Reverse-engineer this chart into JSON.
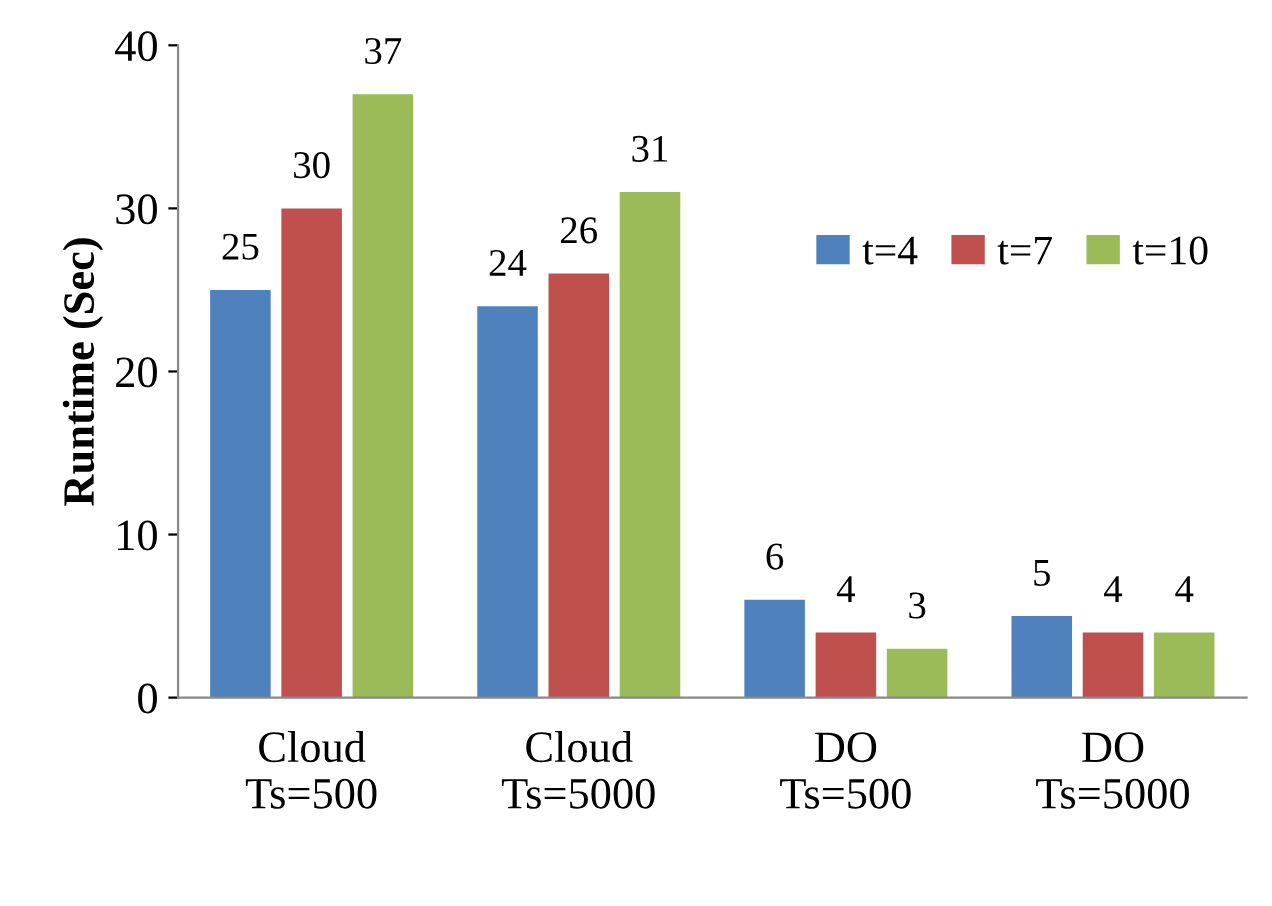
{
  "chart_data": {
    "type": "bar",
    "ylabel": "Runtime (Sec)",
    "categories": [
      "Cloud\nTs=500",
      "Cloud\nTs=5000",
      "DO\nTs=500",
      "DO\nTs=5000"
    ],
    "series": [
      {
        "name": "t=4",
        "color": "#4f81bd",
        "values": [
          25,
          24,
          6,
          5
        ]
      },
      {
        "name": "t=7",
        "color": "#c0504d",
        "values": [
          30,
          26,
          4,
          4
        ]
      },
      {
        "name": "t=10",
        "color": "#9bbb59",
        "values": [
          37,
          31,
          3,
          4
        ]
      }
    ],
    "ylim": [
      0,
      40
    ],
    "yticks": [
      0,
      10,
      20,
      30,
      40
    ],
    "grid": false,
    "legend": "right",
    "data_labels": true
  }
}
